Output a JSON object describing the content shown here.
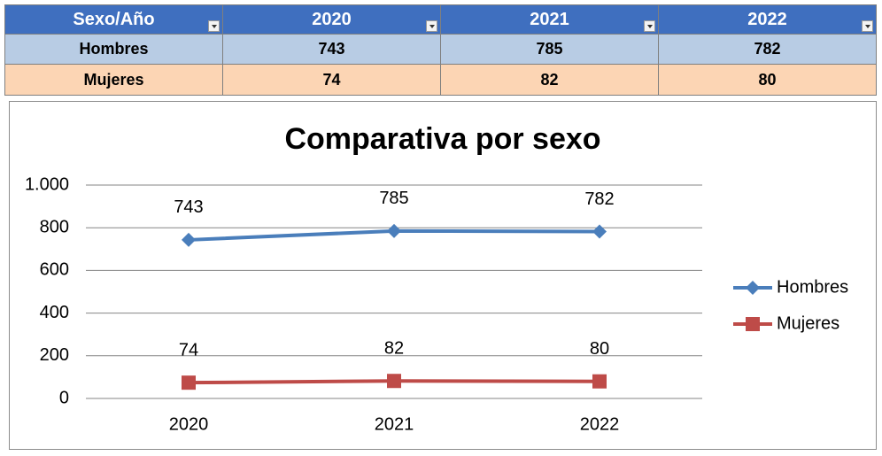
{
  "table": {
    "header": [
      "Sexo/Año",
      "2020",
      "2021",
      "2022"
    ],
    "rows": [
      [
        "Hombres",
        "743",
        "785",
        "782"
      ],
      [
        "Mujeres",
        "74",
        "82",
        "80"
      ]
    ]
  },
  "chart_data": {
    "type": "line",
    "title": "Comparativa por sexo",
    "categories": [
      "2020",
      "2021",
      "2022"
    ],
    "series": [
      {
        "name": "Hombres",
        "color": "#4a7ebb",
        "marker": "diamond",
        "values": [
          743,
          785,
          782
        ]
      },
      {
        "name": "Mujeres",
        "color": "#be4b48",
        "marker": "square",
        "values": [
          74,
          82,
          80
        ]
      }
    ],
    "ylim": [
      0,
      1000
    ],
    "yticks": [
      0,
      200,
      400,
      600,
      800,
      {
        "value": 1000,
        "label": "1.000"
      }
    ],
    "grid": true,
    "legend": "right",
    "data_labels": true
  }
}
